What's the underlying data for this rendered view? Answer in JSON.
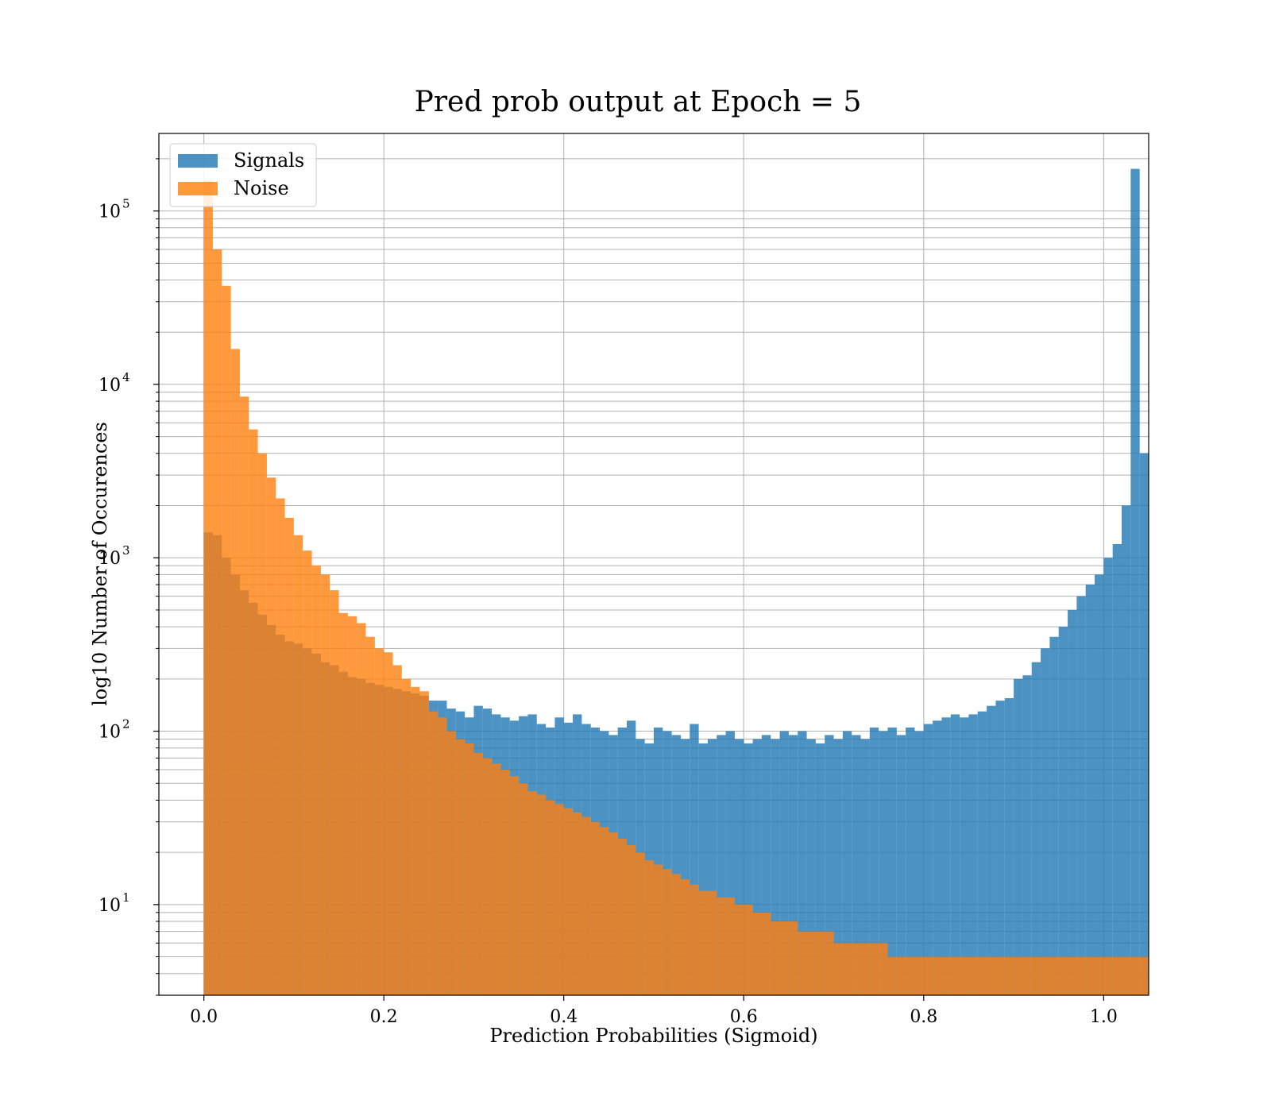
{
  "chart_data": {
    "type": "bar",
    "subtype": "overlapping-histogram",
    "title": "Pred prob output at Epoch = 5",
    "xlabel": "Prediction Probabilities (Sigmoid)",
    "ylabel": "log10 Number of Occurences",
    "xlim": [
      -0.05,
      1.05
    ],
    "ylim": [
      3,
      280000
    ],
    "yscale": "log",
    "x_ticks": [
      {
        "value": 0.0,
        "label": "0.0"
      },
      {
        "value": 0.2,
        "label": "0.2"
      },
      {
        "value": 0.4,
        "label": "0.4"
      },
      {
        "value": 0.6,
        "label": "0.6"
      },
      {
        "value": 0.8,
        "label": "0.8"
      },
      {
        "value": 1.0,
        "label": "1.0"
      }
    ],
    "y_ticks": [
      {
        "value": 10,
        "base": "10",
        "exp": "1"
      },
      {
        "value": 100,
        "base": "10",
        "exp": "2"
      },
      {
        "value": 1000,
        "base": "10",
        "exp": "3"
      },
      {
        "value": 10000,
        "base": "10",
        "exp": "4"
      },
      {
        "value": 100000,
        "base": "10",
        "exp": "5"
      }
    ],
    "grid": true,
    "legend_position": "top-left",
    "bin_start": 0.0,
    "bin_width": 0.01,
    "series": [
      {
        "name": "Signals",
        "color": "#1f77b4",
        "values": [
          1400,
          1350,
          1000,
          800,
          650,
          550,
          470,
          410,
          360,
          330,
          320,
          300,
          280,
          250,
          240,
          220,
          205,
          200,
          190,
          185,
          180,
          175,
          170,
          165,
          160,
          150,
          150,
          135,
          130,
          120,
          140,
          135,
          125,
          120,
          115,
          122,
          125,
          110,
          105,
          120,
          112,
          125,
          110,
          105,
          100,
          95,
          105,
          115,
          90,
          85,
          105,
          100,
          95,
          90,
          110,
          85,
          90,
          95,
          100,
          90,
          85,
          90,
          95,
          90,
          100,
          95,
          100,
          90,
          85,
          95,
          90,
          100,
          95,
          90,
          105,
          100,
          105,
          95,
          105,
          100,
          110,
          115,
          120,
          125,
          120,
          125,
          130,
          140,
          150,
          155,
          200,
          210,
          250,
          300,
          350,
          400,
          500,
          600,
          700,
          800,
          1000,
          1200,
          2000,
          175000,
          4000
        ]
      },
      {
        "name": "Noise",
        "color": "#ff7f0e",
        "values": [
          150000,
          60000,
          37000,
          16000,
          8500,
          5500,
          4000,
          2900,
          2200,
          1700,
          1350,
          1100,
          900,
          800,
          650,
          480,
          460,
          420,
          350,
          300,
          285,
          240,
          200,
          180,
          170,
          130,
          120,
          100,
          90,
          85,
          75,
          70,
          65,
          60,
          55,
          50,
          45,
          43,
          40,
          38,
          36,
          34,
          32,
          30,
          28,
          26,
          24,
          22,
          20,
          18,
          17,
          16,
          15,
          14,
          13,
          12,
          12,
          11,
          11,
          10,
          10,
          9,
          9,
          8,
          8,
          8,
          7,
          7,
          7,
          7,
          6,
          6,
          6,
          6,
          6,
          6,
          5,
          5,
          5,
          5,
          5,
          5,
          5,
          5,
          5,
          5,
          5,
          5,
          5,
          5,
          5,
          5,
          5,
          5,
          5,
          5,
          5,
          5,
          5,
          5,
          5,
          5,
          5,
          5,
          5
        ]
      }
    ]
  }
}
